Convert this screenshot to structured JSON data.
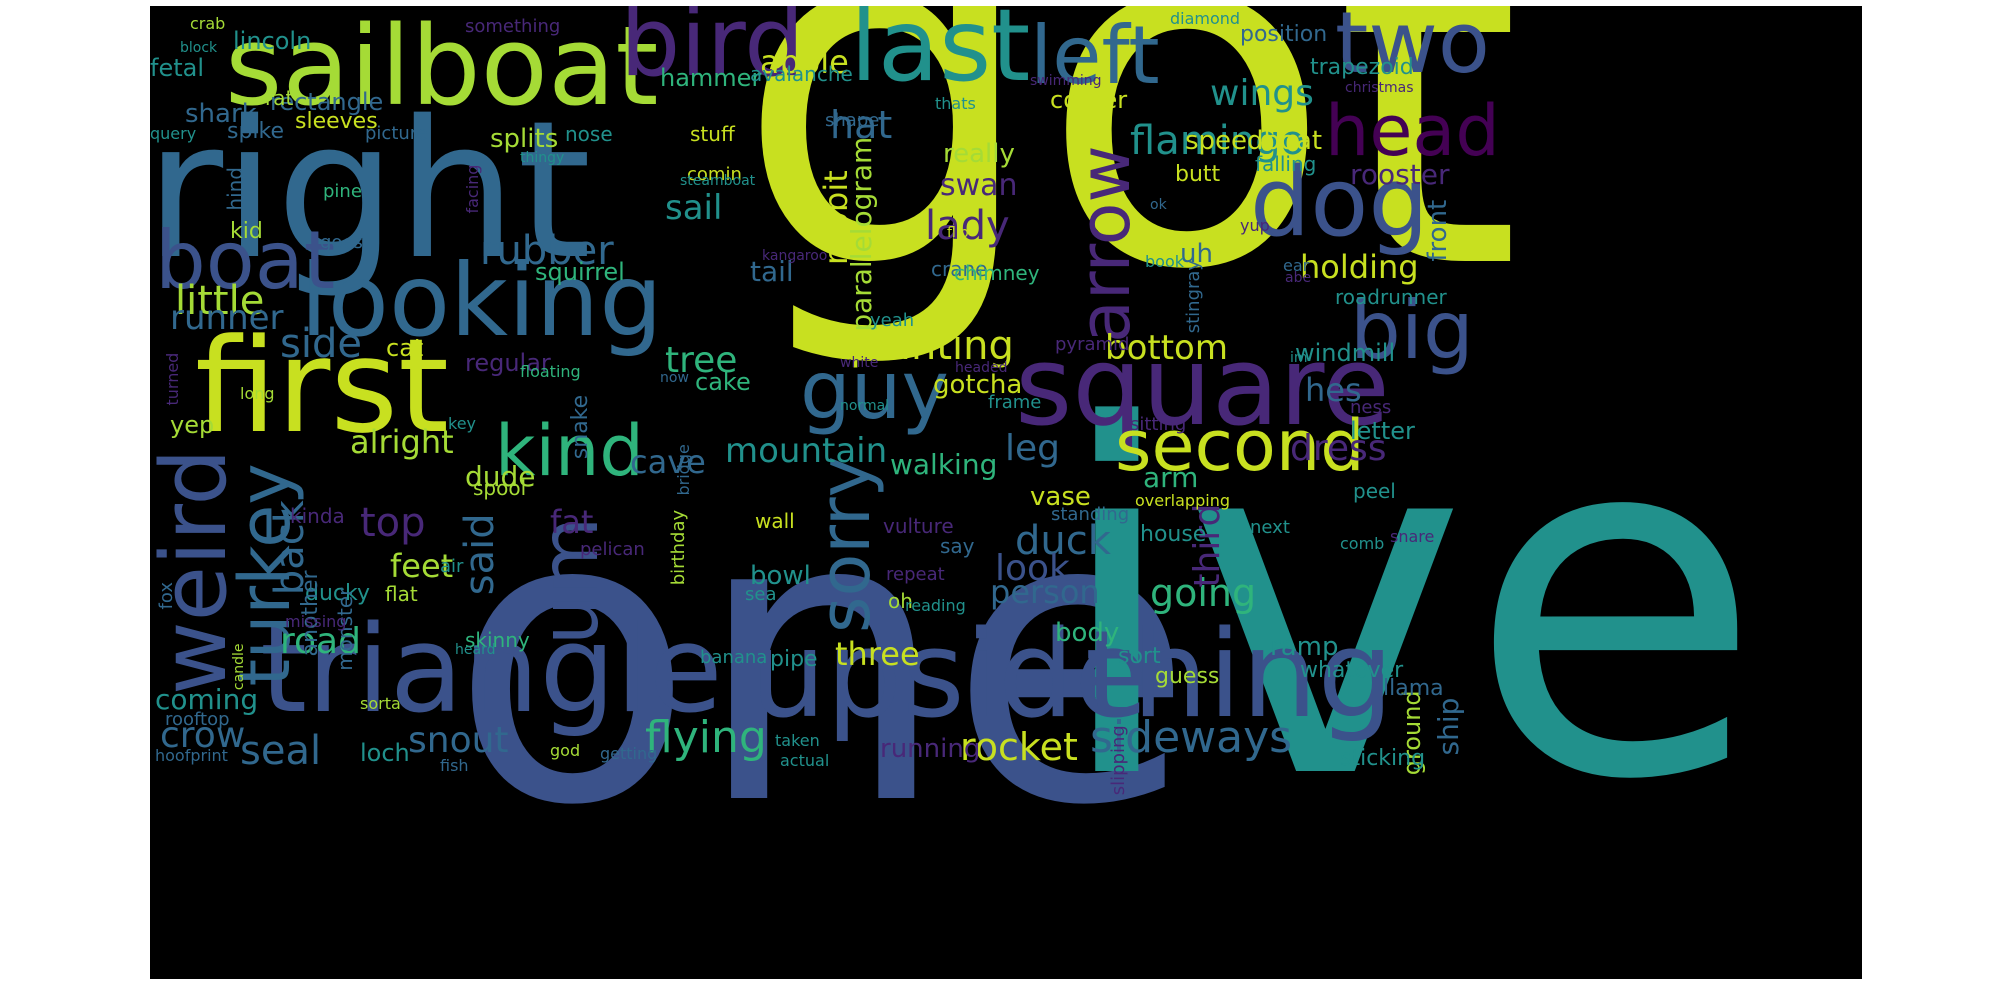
{
  "palette": {
    "lime": "#c8e020",
    "yellowgreen": "#a5db36",
    "green": "#2fb47c",
    "teal": "#21918c",
    "blue": "#3b528b",
    "steel": "#31688e",
    "purple": "#482878",
    "indigo": "#440154",
    "seafoam": "#5ec962"
  },
  "words": [
    {
      "text": "got",
      "c": "lime"
    },
    {
      "text": "one",
      "c": "blue"
    },
    {
      "text": "ive",
      "c": "teal"
    },
    {
      "text": "right",
      "c": "steel"
    },
    {
      "text": "triangle",
      "c": "blue"
    },
    {
      "text": "upside",
      "c": "blue"
    },
    {
      "text": "thing",
      "c": "blue"
    },
    {
      "text": "sailboat",
      "c": "yellowgreen"
    },
    {
      "text": "first",
      "c": "lime"
    },
    {
      "text": "square",
      "c": "purple"
    },
    {
      "text": "last",
      "c": "teal"
    },
    {
      "text": "bird",
      "c": "purple"
    },
    {
      "text": "left",
      "c": "steel"
    },
    {
      "text": "two",
      "c": "blue"
    },
    {
      "text": "dog",
      "c": "blue"
    },
    {
      "text": "head",
      "c": "indigo"
    },
    {
      "text": "looking",
      "c": "steel"
    },
    {
      "text": "boat",
      "c": "blue"
    },
    {
      "text": "weird",
      "c": "blue"
    },
    {
      "text": "guy",
      "c": "steel"
    },
    {
      "text": "kind",
      "c": "green"
    },
    {
      "text": "second",
      "c": "lime"
    },
    {
      "text": "big",
      "c": "blue"
    },
    {
      "text": "arrow",
      "c": "purple"
    },
    {
      "text": "turkey",
      "c": "steel"
    },
    {
      "text": "um",
      "c": "blue"
    },
    {
      "text": "sorry",
      "c": "steel"
    },
    {
      "text": "top",
      "c": "purple"
    },
    {
      "text": "flamingo",
      "c": "teal"
    },
    {
      "text": "apple",
      "c": "lime"
    },
    {
      "text": "wings",
      "c": "teal"
    },
    {
      "text": "rubber",
      "c": "steel"
    },
    {
      "text": "little",
      "c": "yellowgreen"
    },
    {
      "text": "pointing",
      "c": "lime"
    },
    {
      "text": "lady",
      "c": "purple"
    },
    {
      "text": "hat",
      "c": "steel"
    },
    {
      "text": "sail",
      "c": "teal"
    },
    {
      "text": "tree",
      "c": "green"
    },
    {
      "text": "duck",
      "c": "steel"
    },
    {
      "text": "flying",
      "c": "green"
    },
    {
      "text": "sideways",
      "c": "steel"
    },
    {
      "text": "rocket",
      "c": "lime"
    },
    {
      "text": "seal",
      "c": "steel"
    },
    {
      "text": "snout",
      "c": "steel"
    },
    {
      "text": "road",
      "c": "green"
    },
    {
      "text": "going",
      "c": "green"
    },
    {
      "text": "bottom",
      "c": "lime"
    },
    {
      "text": "holding",
      "c": "lime"
    },
    {
      "text": "dress",
      "c": "purple"
    },
    {
      "text": "mountain",
      "c": "teal"
    },
    {
      "text": "leg",
      "c": "steel"
    },
    {
      "text": "alright",
      "c": "yellowgreen"
    },
    {
      "text": "side",
      "c": "steel"
    },
    {
      "text": "runner",
      "c": "steel"
    },
    {
      "text": "person",
      "c": "steel"
    },
    {
      "text": "look",
      "c": "blue"
    },
    {
      "text": "fat",
      "c": "purple"
    },
    {
      "text": "said",
      "c": "steel"
    },
    {
      "text": "back",
      "c": "steel"
    },
    {
      "text": "third",
      "c": "purple"
    },
    {
      "text": "hes",
      "c": "steel"
    },
    {
      "text": "crow",
      "c": "steel"
    },
    {
      "text": "coming",
      "c": "teal"
    },
    {
      "text": "three",
      "c": "lime"
    },
    {
      "text": "parallelogram",
      "c": "yellowgreen"
    },
    {
      "text": "rabbit",
      "c": "lime"
    },
    {
      "text": "swan",
      "c": "purple"
    },
    {
      "text": "really",
      "c": "yellowgreen"
    },
    {
      "text": "speedboat",
      "c": "lime"
    },
    {
      "text": "corner",
      "c": "lime"
    },
    {
      "text": "rooster",
      "c": "purple"
    },
    {
      "text": "front",
      "c": "steel"
    },
    {
      "text": "tail",
      "c": "steel"
    },
    {
      "text": "shark",
      "c": "steel"
    },
    {
      "text": "rectangle",
      "c": "steel"
    },
    {
      "text": "splits",
      "c": "yellowgreen"
    },
    {
      "text": "hammer",
      "c": "green"
    },
    {
      "text": "squirrel",
      "c": "green"
    },
    {
      "text": "cave",
      "c": "steel"
    },
    {
      "text": "dude",
      "c": "yellowgreen"
    },
    {
      "text": "walking",
      "c": "green"
    },
    {
      "text": "gotcha",
      "c": "lime"
    },
    {
      "text": "arm",
      "c": "green"
    },
    {
      "text": "body",
      "c": "green"
    },
    {
      "text": "feet",
      "c": "yellowgreen"
    },
    {
      "text": "bowl",
      "c": "teal"
    },
    {
      "text": "ramp",
      "c": "teal"
    },
    {
      "text": "ship",
      "c": "steel"
    },
    {
      "text": "ground",
      "c": "yellowgreen"
    },
    {
      "text": "running",
      "c": "purple"
    },
    {
      "text": "loch",
      "c": "teal"
    },
    {
      "text": "uh",
      "c": "steel"
    },
    {
      "text": "windmill",
      "c": "teal"
    },
    {
      "text": "regular",
      "c": "purple"
    },
    {
      "text": "yep",
      "c": "yellowgreen"
    },
    {
      "text": "lincoln",
      "c": "teal"
    },
    {
      "text": "fetal",
      "c": "teal"
    },
    {
      "text": "roadrunner",
      "c": "teal"
    },
    {
      "text": "cat",
      "c": "lime"
    },
    {
      "text": "vase",
      "c": "lime"
    },
    {
      "text": "house",
      "c": "teal"
    },
    {
      "text": "letter",
      "c": "teal"
    },
    {
      "text": "ducky",
      "c": "teal"
    },
    {
      "text": "another",
      "c": "steel"
    },
    {
      "text": "snake",
      "c": "steel"
    },
    {
      "text": "cake",
      "c": "green"
    },
    {
      "text": "position",
      "c": "steel"
    },
    {
      "text": "trapezoid",
      "c": "teal"
    },
    {
      "text": "avalanche",
      "c": "teal"
    },
    {
      "text": "nose",
      "c": "teal"
    },
    {
      "text": "sleeves",
      "c": "lime"
    },
    {
      "text": "rat",
      "c": "yellowgreen"
    },
    {
      "text": "spike",
      "c": "steel"
    },
    {
      "text": "picture",
      "c": "steel"
    },
    {
      "text": "shape",
      "c": "steel"
    },
    {
      "text": "stuff",
      "c": "lime"
    },
    {
      "text": "crane",
      "c": "steel"
    },
    {
      "text": "comin",
      "c": "lime"
    },
    {
      "text": "chimney",
      "c": "green"
    },
    {
      "text": "butt",
      "c": "lime"
    },
    {
      "text": "falling",
      "c": "teal"
    },
    {
      "text": "stingray",
      "c": "steel"
    },
    {
      "text": "book",
      "c": "teal"
    },
    {
      "text": "ear",
      "c": "steel"
    },
    {
      "text": "yeah",
      "c": "teal"
    },
    {
      "text": "frame",
      "c": "teal"
    },
    {
      "text": "standing",
      "c": "steel"
    },
    {
      "text": "wall",
      "c": "lime"
    },
    {
      "text": "vulture",
      "c": "purple"
    },
    {
      "text": "say",
      "c": "steel"
    },
    {
      "text": "repeat",
      "c": "purple"
    },
    {
      "text": "oh",
      "c": "yellowgreen"
    },
    {
      "text": "reading",
      "c": "teal"
    },
    {
      "text": "overlapping",
      "c": "lime"
    },
    {
      "text": "next",
      "c": "teal"
    },
    {
      "text": "peel",
      "c": "teal"
    },
    {
      "text": "comb",
      "c": "teal"
    },
    {
      "text": "snare",
      "c": "purple"
    },
    {
      "text": "sort",
      "c": "teal"
    },
    {
      "text": "guess",
      "c": "yellowgreen"
    },
    {
      "text": "whatever",
      "c": "teal"
    },
    {
      "text": "llama",
      "c": "steel"
    },
    {
      "text": "sticking",
      "c": "teal"
    },
    {
      "text": "slipping",
      "c": "purple"
    },
    {
      "text": "pipe",
      "c": "teal"
    },
    {
      "text": "banana",
      "c": "teal"
    },
    {
      "text": "skinny",
      "c": "green"
    },
    {
      "text": "spool",
      "c": "yellowgreen"
    },
    {
      "text": "flat",
      "c": "yellowgreen"
    },
    {
      "text": "monster",
      "c": "steel"
    },
    {
      "text": "kinda",
      "c": "purple"
    },
    {
      "text": "air",
      "c": "teal"
    },
    {
      "text": "bridge",
      "c": "steel"
    },
    {
      "text": "birthday",
      "c": "yellowgreen"
    },
    {
      "text": "pelican",
      "c": "purple"
    },
    {
      "text": "sea",
      "c": "teal"
    },
    {
      "text": "heard",
      "c": "teal"
    },
    {
      "text": "missing",
      "c": "purple"
    },
    {
      "text": "candle",
      "c": "yellowgreen"
    },
    {
      "text": "fox",
      "c": "steel"
    },
    {
      "text": "sorta",
      "c": "yellowgreen"
    },
    {
      "text": "rooftop",
      "c": "steel"
    },
    {
      "text": "hoofprint",
      "c": "steel"
    },
    {
      "text": "fish",
      "c": "steel"
    },
    {
      "text": "god",
      "c": "yellowgreen"
    },
    {
      "text": "getting",
      "c": "steel"
    },
    {
      "text": "taken",
      "c": "teal"
    },
    {
      "text": "actual",
      "c": "teal"
    },
    {
      "text": "kid",
      "c": "yellowgreen"
    },
    {
      "text": "hind",
      "c": "steel"
    },
    {
      "text": "pine",
      "c": "green"
    },
    {
      "text": "goes",
      "c": "steel"
    },
    {
      "text": "facing",
      "c": "purple"
    },
    {
      "text": "long",
      "c": "yellowgreen"
    },
    {
      "text": "turned",
      "c": "purple"
    },
    {
      "text": "key",
      "c": "teal"
    },
    {
      "text": "floating",
      "c": "green"
    },
    {
      "text": "now",
      "c": "steel"
    },
    {
      "text": "white",
      "c": "purple"
    },
    {
      "text": "normal",
      "c": "teal"
    },
    {
      "text": "headed",
      "c": "purple"
    },
    {
      "text": "pyramid",
      "c": "purple"
    },
    {
      "text": "im",
      "c": "teal"
    },
    {
      "text": "sitting",
      "c": "purple"
    },
    {
      "text": "ness",
      "c": "purple"
    },
    {
      "text": "crab",
      "c": "yellowgreen"
    },
    {
      "text": "block",
      "c": "teal"
    },
    {
      "text": "query",
      "c": "teal"
    },
    {
      "text": "something",
      "c": "purple"
    },
    {
      "text": "diamond",
      "c": "teal"
    },
    {
      "text": "thats",
      "c": "teal"
    },
    {
      "text": "swimming",
      "c": "purple"
    },
    {
      "text": "christmas",
      "c": "purple"
    },
    {
      "text": "thingy",
      "c": "teal"
    },
    {
      "text": "steamboat",
      "c": "teal"
    },
    {
      "text": "flip",
      "c": "lime"
    },
    {
      "text": "kangaroo",
      "c": "purple"
    },
    {
      "text": "ok",
      "c": "steel"
    },
    {
      "text": "yup",
      "c": "purple"
    },
    {
      "text": "abe",
      "c": "purple"
    }
  ]
}
